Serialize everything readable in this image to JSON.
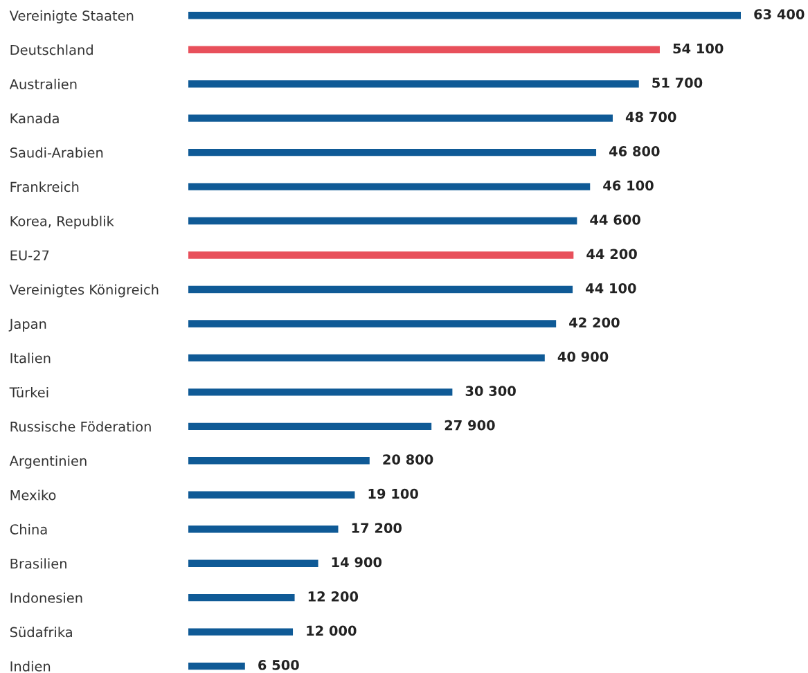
{
  "chart_data": {
    "type": "bar",
    "orientation": "horizontal",
    "categories": [
      "Vereinigte Staaten",
      "Deutschland",
      "Australien",
      "Kanada",
      "Saudi-Arabien",
      "Frankreich",
      "Korea, Republik",
      "EU-27",
      "Vereinigtes Königreich",
      "Japan",
      "Italien",
      "Türkei",
      "Russische Föderation",
      "Argentinien",
      "Mexiko",
      "China",
      "Brasilien",
      "Indonesien",
      "Südafrika",
      "Indien"
    ],
    "values": [
      63400,
      54100,
      51700,
      48700,
      46800,
      46100,
      44600,
      44200,
      44100,
      42200,
      40900,
      30300,
      27900,
      20800,
      19100,
      17200,
      14900,
      12200,
      12000,
      6500
    ],
    "value_labels": [
      "63 400",
      "54 100",
      "51 700",
      "48 700",
      "46 800",
      "46 100",
      "44 600",
      "44 200",
      "44 100",
      "42 200",
      "40 900",
      "30 300",
      "27 900",
      "20 800",
      "19 100",
      "17 200",
      "14 900",
      "12 200",
      "12 000",
      "6 500"
    ],
    "colors": [
      "#0f5a96",
      "#e8505b",
      "#0f5a96",
      "#0f5a96",
      "#0f5a96",
      "#0f5a96",
      "#0f5a96",
      "#e8505b",
      "#0f5a96",
      "#0f5a96",
      "#0f5a96",
      "#0f5a96",
      "#0f5a96",
      "#0f5a96",
      "#0f5a96",
      "#0f5a96",
      "#0f5a96",
      "#0f5a96",
      "#0f5a96",
      "#0f5a96"
    ]
  }
}
